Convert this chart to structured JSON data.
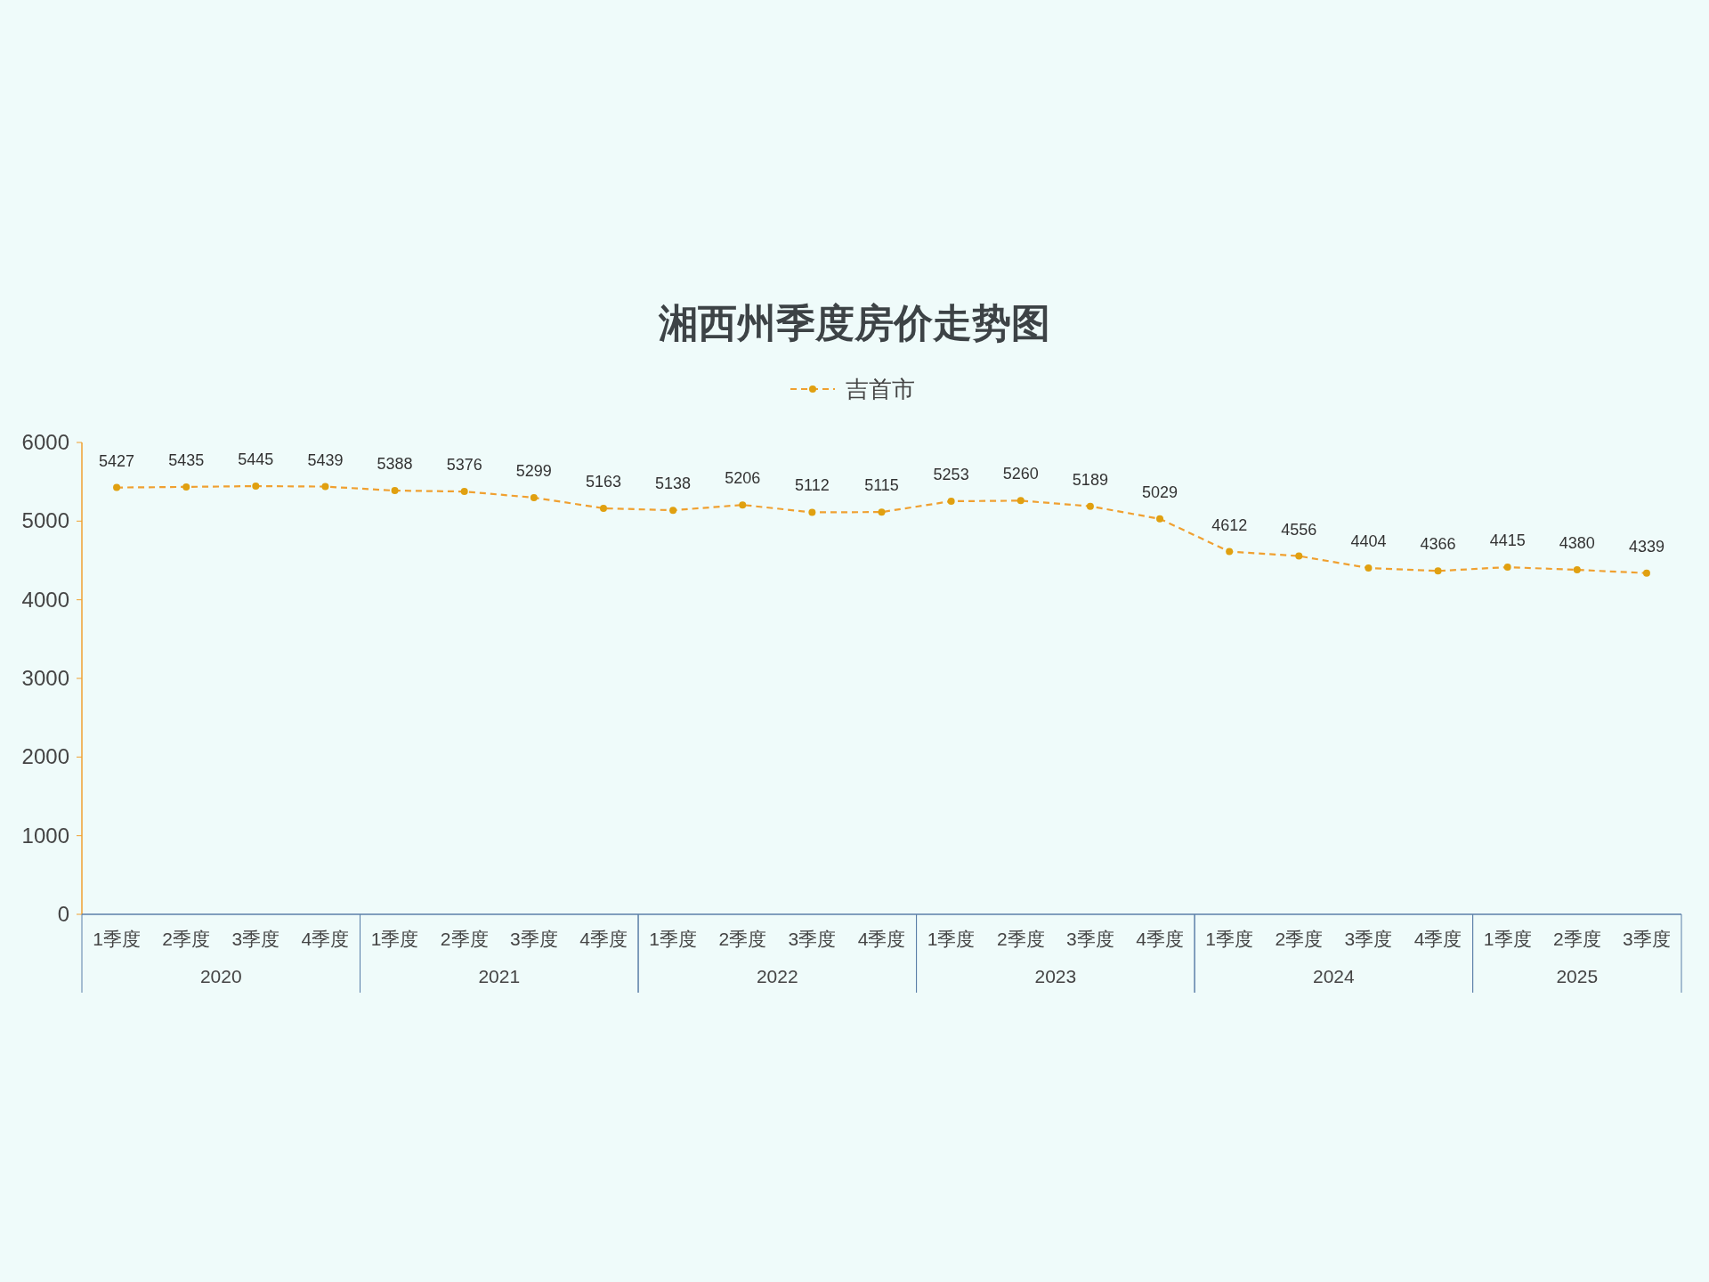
{
  "chart_data": {
    "type": "line",
    "title": "湘西州季度房价走势图",
    "categories": [
      "1季度",
      "2季度",
      "3季度",
      "4季度",
      "1季度",
      "2季度",
      "3季度",
      "4季度",
      "1季度",
      "2季度",
      "3季度",
      "4季度",
      "1季度",
      "2季度",
      "3季度",
      "4季度",
      "1季度",
      "2季度",
      "3季度",
      "4季度",
      "1季度",
      "2季度",
      "3季度"
    ],
    "series": [
      {
        "name": "吉首市",
        "color": "#f0a030",
        "values": [
          5427,
          5435,
          5445,
          5439,
          5388,
          5376,
          5299,
          5163,
          5138,
          5206,
          5112,
          5115,
          5253,
          5260,
          5189,
          5029,
          4612,
          4556,
          4404,
          4366,
          4415,
          4380,
          4339
        ]
      }
    ],
    "annotations": [
      "2020",
      "2021",
      "2022",
      "2023",
      "2024",
      "2025"
    ],
    "ylim": [
      0,
      6000
    ],
    "yticks": [
      0,
      1000,
      2000,
      3000,
      4000,
      5000,
      6000
    ],
    "data_labels": true,
    "legend": "top",
    "marker": "circle",
    "line_style": "dashed"
  }
}
